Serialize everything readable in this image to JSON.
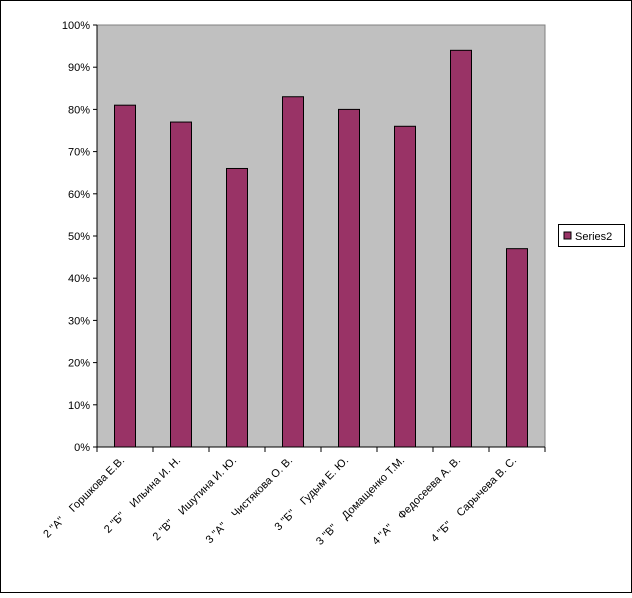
{
  "chart_data": {
    "type": "bar",
    "categories": [
      [
        "2 \"А\"",
        "Горшкова Е.В."
      ],
      [
        "2 \"Б\"",
        "Ильина И. Н."
      ],
      [
        "2 \"В\"",
        "Ишутина И. Ю."
      ],
      [
        "3 \"А\"",
        "Чистякова О. В."
      ],
      [
        "3 \"Б\"",
        "Гудым Е. Ю."
      ],
      [
        "3 \"В\"",
        "Домащенко Т.М."
      ],
      [
        "4 \"А\"",
        "Федосеева А. В."
      ],
      [
        "4 \"Б\"",
        "Сарычева В. С."
      ]
    ],
    "series": [
      {
        "name": "Series2",
        "color": "#993366",
        "values": [
          81,
          77,
          66,
          83,
          80,
          76,
          94,
          47
        ]
      }
    ],
    "ylim": [
      0,
      100
    ],
    "yticks": [
      {
        "value": 0,
        "label": "0%"
      },
      {
        "value": 10,
        "label": "10%"
      },
      {
        "value": 20,
        "label": "20%"
      },
      {
        "value": 30,
        "label": "30%"
      },
      {
        "value": 40,
        "label": "40%"
      },
      {
        "value": 50,
        "label": "50%"
      },
      {
        "value": 60,
        "label": "60%"
      },
      {
        "value": 70,
        "label": "70%"
      },
      {
        "value": 80,
        "label": "80%"
      },
      {
        "value": 90,
        "label": "90%"
      },
      {
        "value": 100,
        "label": "100%"
      }
    ],
    "legend": "right"
  }
}
